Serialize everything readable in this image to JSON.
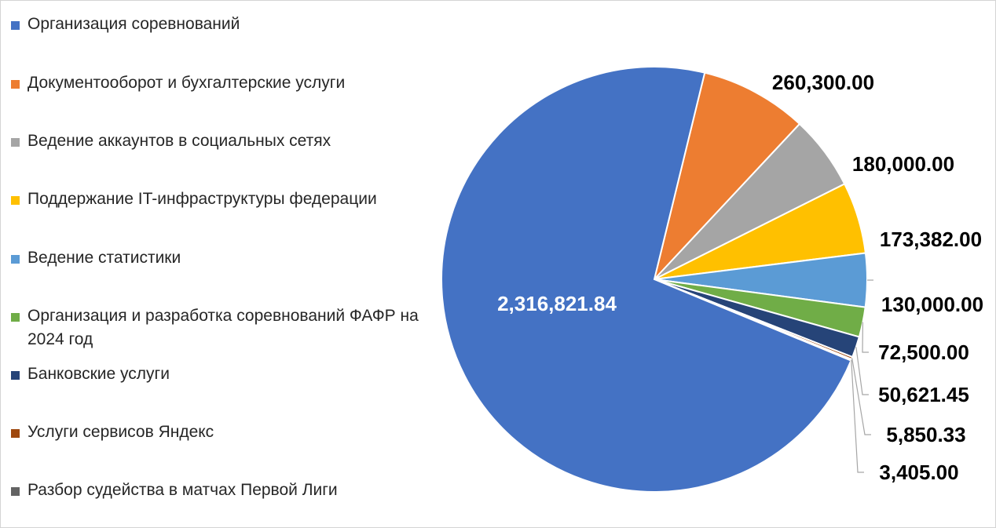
{
  "chart_data": {
    "type": "pie",
    "legend_position": "left",
    "categories": [
      "Организация соревнований",
      "Документооборот и бухгалтерские услуги",
      "Ведение аккаунтов в социальных сетях",
      "Поддержание IT-инфраструктуры федерации",
      "Ведение статистики",
      "Организация и разработка соревнований ФАФР на 2024 год",
      "Банковские услуги",
      "Услуги сервисов Яндекс",
      "Разбор судейства в матчах Первой Лиги"
    ],
    "values": [
      2316821.84,
      260300.0,
      180000.0,
      173382.0,
      130000.0,
      72500.0,
      50621.45,
      5850.33,
      3405.0
    ],
    "data_labels": [
      "2,316,821.84",
      "260,300.00",
      "180,000.00",
      "173,382.00",
      "130,000.00",
      "72,500.00",
      "50,621.45",
      "5,850.33",
      "3,405.00"
    ],
    "colors": [
      "#4472C4",
      "#ED7D31",
      "#A5A5A5",
      "#FFC000",
      "#5B9BD5",
      "#70AD47",
      "#264478",
      "#9E480E",
      "#636363"
    ]
  }
}
